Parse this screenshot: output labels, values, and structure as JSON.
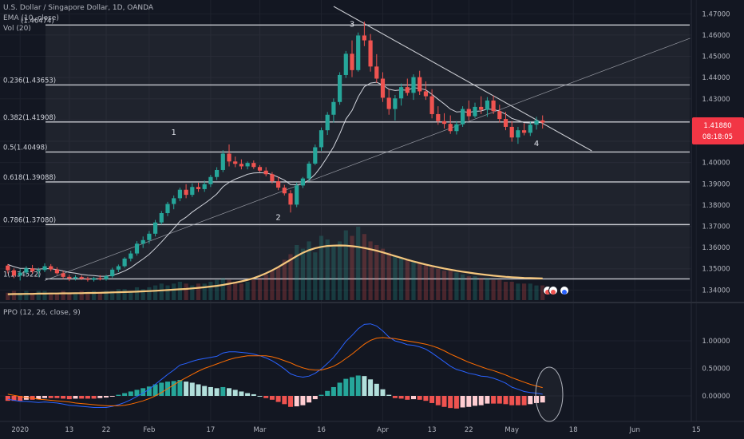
{
  "legend": {
    "title": "U.S. Dollar / Singapore Dollar, 1D, OANDA",
    "ema": "EMA (10, close)",
    "vol": "Vol (20)",
    "ppo": "PPO (12, 26, close, 9)"
  },
  "price_badge": {
    "price": "1.41880",
    "countdown": "08:18:05"
  },
  "fib_levels": [
    {
      "label": "",
      "price": 1.46474,
      "pct": ""
    },
    {
      "label": "0.236(1.43653)",
      "price": 1.43653
    },
    {
      "label": "0.382(1.41908)",
      "price": 1.41908
    },
    {
      "label": "0.5(1.40498)",
      "price": 1.40498
    },
    {
      "label": "0.618(1.39088)",
      "price": 1.39088
    },
    {
      "label": "0.786(1.37080)",
      "price": 1.3708
    },
    {
      "label": "1(1.34522)",
      "price": 1.34522
    }
  ],
  "fib_top_label": "(1.46474)",
  "wave_labels": [
    {
      "text": "1",
      "date_index": 27,
      "price": 1.4145
    },
    {
      "text": "2",
      "date_index": 44,
      "price": 1.3745
    },
    {
      "text": "3",
      "date_index": 56,
      "price": 1.4655
    },
    {
      "text": "4",
      "date_index": 86,
      "price": 1.4092
    }
  ],
  "colors": {
    "up": "#26a69a",
    "down": "#ef5350",
    "ema": "#d1d4dc",
    "vol_ma": "#f5c77e",
    "ppo": "#2962ff",
    "signal": "#ff6d00",
    "hist_up": "#26a69a",
    "hist_down": "#ef5350",
    "badge": "#f23645"
  },
  "chart_data": [
    {
      "type": "candlestick",
      "title": "U.S. Dollar / Singapore Dollar, 1D, OANDA",
      "x_axis": {
        "ticks": [
          "2020",
          "13",
          "22",
          "Feb",
          "17",
          "Mar",
          "16",
          "Apr",
          "13",
          "22",
          "May",
          "18",
          "Jun",
          "15"
        ],
        "tick_index": [
          2,
          10,
          16,
          23,
          33,
          41,
          51,
          61,
          69,
          75,
          82,
          92,
          102,
          112
        ]
      },
      "y_axis": {
        "ticks": [
          "1.47000",
          "1.46000",
          "1.45000",
          "1.44000",
          "1.43000",
          "1.42000",
          "1.41000",
          "1.40000",
          "1.39000",
          "1.38000",
          "1.37000",
          "1.36000",
          "1.35000",
          "1.34000"
        ],
        "range": [
          1.3345,
          1.4735
        ]
      },
      "ohlc": [
        [
          1.3515,
          1.3522,
          1.3478,
          1.3493
        ],
        [
          1.3493,
          1.3502,
          1.3456,
          1.3468
        ],
        [
          1.3468,
          1.3498,
          1.3445,
          1.3482
        ],
        [
          1.3482,
          1.3512,
          1.347,
          1.3502
        ],
        [
          1.3502,
          1.3518,
          1.3478,
          1.3488
        ],
        [
          1.3488,
          1.3505,
          1.3462,
          1.3494
        ],
        [
          1.3494,
          1.3526,
          1.3484,
          1.3512
        ],
        [
          1.3512,
          1.3522,
          1.3488,
          1.3497
        ],
        [
          1.3497,
          1.3507,
          1.3471,
          1.3479
        ],
        [
          1.3479,
          1.349,
          1.3452,
          1.3462
        ],
        [
          1.3462,
          1.3472,
          1.3442,
          1.3455
        ],
        [
          1.3455,
          1.347,
          1.3445,
          1.3461
        ],
        [
          1.3461,
          1.347,
          1.3447,
          1.3453
        ],
        [
          1.3453,
          1.3462,
          1.344,
          1.3448
        ],
        [
          1.3448,
          1.3462,
          1.344,
          1.3456
        ],
        [
          1.3456,
          1.347,
          1.3445,
          1.3451
        ],
        [
          1.3451,
          1.3472,
          1.3444,
          1.3465
        ],
        [
          1.3465,
          1.3505,
          1.3458,
          1.3496
        ],
        [
          1.3496,
          1.352,
          1.3484,
          1.3512
        ],
        [
          1.3512,
          1.3555,
          1.3505,
          1.3548
        ],
        [
          1.3548,
          1.3585,
          1.3535,
          1.3572
        ],
        [
          1.3572,
          1.363,
          1.3562,
          1.3618
        ],
        [
          1.3618,
          1.3652,
          1.3598,
          1.3635
        ],
        [
          1.3635,
          1.3678,
          1.3618,
          1.3665
        ],
        [
          1.3665,
          1.373,
          1.3652,
          1.3718
        ],
        [
          1.3718,
          1.3772,
          1.3708,
          1.3762
        ],
        [
          1.3762,
          1.3815,
          1.3748,
          1.3805
        ],
        [
          1.3805,
          1.3845,
          1.378,
          1.3832
        ],
        [
          1.3832,
          1.3882,
          1.3818,
          1.3872
        ],
        [
          1.3872,
          1.3898,
          1.3832,
          1.3848
        ],
        [
          1.3848,
          1.3902,
          1.3838,
          1.3885
        ],
        [
          1.3885,
          1.3905,
          1.3862,
          1.3875
        ],
        [
          1.3875,
          1.3915,
          1.3862,
          1.3898
        ],
        [
          1.3898,
          1.3942,
          1.3885,
          1.3932
        ],
        [
          1.3932,
          1.3978,
          1.3918,
          1.3965
        ],
        [
          1.3965,
          1.4058,
          1.3955,
          1.4042
        ],
        [
          1.4042,
          1.4085,
          1.3982,
          1.4005
        ],
        [
          1.4005,
          1.4028,
          1.3978,
          1.3994
        ],
        [
          1.3994,
          1.4015,
          1.3968,
          1.3982
        ],
        [
          1.3982,
          1.4005,
          1.3968,
          1.3998
        ],
        [
          1.3998,
          1.401,
          1.397,
          1.3979
        ],
        [
          1.3979,
          1.3988,
          1.3955,
          1.3962
        ],
        [
          1.3962,
          1.3978,
          1.3935,
          1.3945
        ],
        [
          1.3945,
          1.3955,
          1.3902,
          1.3912
        ],
        [
          1.3912,
          1.3932,
          1.387,
          1.3882
        ],
        [
          1.3882,
          1.3895,
          1.3845,
          1.3855
        ],
        [
          1.3855,
          1.387,
          1.3765,
          1.3802
        ],
        [
          1.3802,
          1.3905,
          1.379,
          1.3892
        ],
        [
          1.3892,
          1.3932,
          1.388,
          1.3925
        ],
        [
          1.3925,
          1.4005,
          1.391,
          1.3995
        ],
        [
          1.3995,
          1.4085,
          1.3988,
          1.4072
        ],
        [
          1.4072,
          1.4165,
          1.4055,
          1.4152
        ],
        [
          1.4152,
          1.4238,
          1.413,
          1.4225
        ],
        [
          1.4225,
          1.4302,
          1.4188,
          1.4285
        ],
        [
          1.4285,
          1.4425,
          1.4272,
          1.4412
        ],
        [
          1.4412,
          1.4525,
          1.4398,
          1.4512
        ],
        [
          1.4512,
          1.4575,
          1.4402,
          1.4435
        ],
        [
          1.4435,
          1.4612,
          1.4428,
          1.4598
        ],
        [
          1.4598,
          1.4664,
          1.4548,
          1.4575
        ],
        [
          1.4575,
          1.4605,
          1.4428,
          1.4452
        ],
        [
          1.4452,
          1.451,
          1.4375,
          1.4395
        ],
        [
          1.4395,
          1.4425,
          1.4285,
          1.4305
        ],
        [
          1.4305,
          1.4345,
          1.4225,
          1.4252
        ],
        [
          1.4252,
          1.4318,
          1.4198,
          1.4302
        ],
        [
          1.4302,
          1.4372,
          1.4268,
          1.4355
        ],
        [
          1.4355,
          1.4395,
          1.4315,
          1.4328
        ],
        [
          1.4328,
          1.4415,
          1.4295,
          1.4402
        ],
        [
          1.4402,
          1.4432,
          1.4318,
          1.4335
        ],
        [
          1.4335,
          1.4382,
          1.4295,
          1.4312
        ],
        [
          1.4312,
          1.4345,
          1.4208,
          1.4228
        ],
        [
          1.4228,
          1.4265,
          1.4178,
          1.4195
        ],
        [
          1.4195,
          1.4232,
          1.416,
          1.4182
        ],
        [
          1.4182,
          1.4222,
          1.4135,
          1.4148
        ],
        [
          1.4148,
          1.4195,
          1.4132,
          1.418
        ],
        [
          1.418,
          1.4265,
          1.4168,
          1.4252
        ],
        [
          1.4252,
          1.4292,
          1.4198,
          1.4218
        ],
        [
          1.4218,
          1.4282,
          1.421,
          1.4262
        ],
        [
          1.4262,
          1.4312,
          1.4228,
          1.4248
        ],
        [
          1.4248,
          1.4308,
          1.4215,
          1.4292
        ],
        [
          1.4292,
          1.4315,
          1.4228,
          1.4242
        ],
        [
          1.4242,
          1.4272,
          1.4188,
          1.4205
        ],
        [
          1.4205,
          1.4238,
          1.4152,
          1.4168
        ],
        [
          1.4168,
          1.4195,
          1.4098,
          1.4118
        ],
        [
          1.4118,
          1.4168,
          1.4088,
          1.4152
        ],
        [
          1.4152,
          1.4185,
          1.4128,
          1.414
        ],
        [
          1.414,
          1.4192,
          1.4125,
          1.4178
        ],
        [
          1.4178,
          1.4215,
          1.4155,
          1.4198
        ],
        [
          1.4198,
          1.4222,
          1.416,
          1.4188
        ]
      ],
      "ema10": [
        1.352,
        1.351,
        1.3502,
        1.3502,
        1.35,
        1.3498,
        1.3501,
        1.35,
        1.3496,
        1.349,
        1.3483,
        1.3479,
        1.3474,
        1.347,
        1.3468,
        1.3465,
        1.3465,
        1.347,
        1.3478,
        1.349,
        1.3505,
        1.3526,
        1.3546,
        1.3568,
        1.3596,
        1.3626,
        1.3658,
        1.369,
        1.3724,
        1.3743,
        1.3767,
        1.3787,
        1.3807,
        1.3828,
        1.3852,
        1.3886,
        1.3907,
        1.3922,
        1.3933,
        1.3945,
        1.3951,
        1.3952,
        1.3951,
        1.3944,
        1.3931,
        1.3917,
        1.3896,
        1.3895,
        1.3901,
        1.3918,
        1.3945,
        1.3983,
        1.4027,
        1.4074,
        1.4135,
        1.4204,
        1.4245,
        1.4309,
        1.4357,
        1.4374,
        1.4378,
        1.4365,
        1.4345,
        1.4339,
        1.4342,
        1.434,
        1.4352,
        1.4349,
        1.4342,
        1.4321,
        1.4298,
        1.4276,
        1.4252,
        1.4238,
        1.424,
        1.4236,
        1.4241,
        1.4243,
        1.4252,
        1.425,
        1.4242,
        1.4228,
        1.4208,
        1.4198,
        1.4188,
        1.4186,
        1.4188,
        1.4188
      ],
      "volume": [
        4,
        5,
        4,
        5,
        4,
        5,
        5,
        4,
        4,
        5,
        4,
        4,
        5,
        4,
        5,
        4,
        5,
        5,
        6,
        6,
        5,
        7,
        6,
        7,
        8,
        9,
        8,
        9,
        10,
        9,
        8,
        9,
        9,
        10,
        11,
        12,
        11,
        10,
        9,
        10,
        11,
        12,
        14,
        16,
        18,
        22,
        25,
        30,
        28,
        32,
        26,
        35,
        33,
        30,
        32,
        38,
        35,
        40,
        36,
        32,
        30,
        28,
        26,
        24,
        23,
        22,
        21,
        20,
        19,
        18,
        17,
        16,
        16,
        15,
        14,
        13,
        13,
        12,
        12,
        11,
        11,
        10,
        10,
        9,
        9,
        9,
        8,
        8
      ],
      "volume_ma": [
        3.2,
        3.3,
        3.3,
        3.4,
        3.4,
        3.5,
        3.5,
        3.6,
        3.6,
        3.7,
        3.7,
        3.8,
        3.8,
        3.9,
        3.9,
        4.0,
        4.1,
        4.2,
        4.3,
        4.4,
        4.5,
        4.6,
        4.8,
        4.9,
        5.1,
        5.3,
        5.5,
        5.7,
        5.9,
        6.1,
        6.4,
        6.7,
        7.0,
        7.4,
        7.8,
        8.3,
        8.9,
        9.5,
        10.2,
        11.0,
        12.0,
        13.2,
        14.6,
        16.2,
        18.0,
        20.0,
        22.0,
        24.0,
        25.8,
        27.2,
        28.3,
        29.0,
        29.5,
        29.7,
        29.8,
        29.7,
        29.4,
        29.0,
        28.4,
        27.7,
        26.9,
        26.0,
        25.0,
        24.0,
        23.0,
        22.0,
        21.1,
        20.2,
        19.4,
        18.6,
        17.9,
        17.2,
        16.6,
        16.0,
        15.5,
        15.0,
        14.5,
        14.1,
        13.7,
        13.3,
        13.0,
        12.7,
        12.5,
        12.3,
        12.1,
        12.0,
        11.9,
        11.8
      ]
    },
    {
      "type": "line",
      "title": "PPO (12, 26, close, 9)",
      "y_axis": {
        "ticks": [
          "1.00000",
          "0.50000",
          "0.00000"
        ],
        "range": [
          -0.45,
          1.32
        ]
      },
      "series": [
        {
          "name": "PPO",
          "values": [
            -0.06,
            -0.08,
            -0.1,
            -0.1,
            -0.11,
            -0.12,
            -0.11,
            -0.12,
            -0.13,
            -0.15,
            -0.17,
            -0.18,
            -0.19,
            -0.2,
            -0.21,
            -0.21,
            -0.21,
            -0.19,
            -0.16,
            -0.12,
            -0.07,
            -0.01,
            0.05,
            0.12,
            0.21,
            0.3,
            0.39,
            0.47,
            0.56,
            0.59,
            0.63,
            0.66,
            0.68,
            0.7,
            0.72,
            0.78,
            0.8,
            0.8,
            0.79,
            0.78,
            0.76,
            0.73,
            0.69,
            0.64,
            0.57,
            0.49,
            0.4,
            0.36,
            0.34,
            0.36,
            0.41,
            0.49,
            0.59,
            0.7,
            0.84,
            0.99,
            1.1,
            1.22,
            1.3,
            1.31,
            1.27,
            1.18,
            1.07,
            1.0,
            0.97,
            0.93,
            0.92,
            0.89,
            0.85,
            0.78,
            0.7,
            0.62,
            0.54,
            0.48,
            0.45,
            0.41,
            0.39,
            0.36,
            0.35,
            0.32,
            0.28,
            0.23,
            0.16,
            0.12,
            0.08,
            0.06,
            0.05,
            0.03
          ]
        },
        {
          "name": "Signal",
          "values": [
            0.03,
            0.01,
            -0.01,
            -0.03,
            -0.04,
            -0.06,
            -0.07,
            -0.08,
            -0.09,
            -0.1,
            -0.11,
            -0.13,
            -0.14,
            -0.15,
            -0.16,
            -0.17,
            -0.18,
            -0.18,
            -0.18,
            -0.17,
            -0.15,
            -0.12,
            -0.09,
            -0.05,
            0.0,
            0.06,
            0.13,
            0.2,
            0.27,
            0.33,
            0.39,
            0.45,
            0.5,
            0.54,
            0.58,
            0.62,
            0.66,
            0.69,
            0.71,
            0.73,
            0.73,
            0.73,
            0.73,
            0.71,
            0.68,
            0.64,
            0.6,
            0.55,
            0.51,
            0.48,
            0.47,
            0.47,
            0.5,
            0.54,
            0.6,
            0.68,
            0.76,
            0.85,
            0.94,
            1.01,
            1.05,
            1.06,
            1.05,
            1.04,
            1.02,
            1.0,
            0.98,
            0.96,
            0.94,
            0.91,
            0.87,
            0.82,
            0.76,
            0.71,
            0.66,
            0.61,
            0.57,
            0.53,
            0.49,
            0.46,
            0.42,
            0.38,
            0.33,
            0.29,
            0.25,
            0.21,
            0.18,
            0.15
          ]
        }
      ],
      "histogram": [
        -0.09,
        -0.09,
        -0.09,
        -0.07,
        -0.07,
        -0.06,
        -0.04,
        -0.04,
        -0.04,
        -0.05,
        -0.06,
        -0.05,
        -0.05,
        -0.05,
        -0.05,
        -0.04,
        -0.03,
        -0.01,
        0.02,
        0.05,
        0.08,
        0.11,
        0.14,
        0.17,
        0.21,
        0.24,
        0.26,
        0.27,
        0.29,
        0.26,
        0.24,
        0.21,
        0.18,
        0.16,
        0.14,
        0.16,
        0.14,
        0.11,
        0.08,
        0.05,
        0.03,
        0.0,
        -0.04,
        -0.07,
        -0.11,
        -0.15,
        -0.2,
        -0.19,
        -0.17,
        -0.12,
        -0.06,
        0.02,
        0.09,
        0.16,
        0.24,
        0.31,
        0.34,
        0.37,
        0.36,
        0.3,
        0.22,
        0.12,
        0.02,
        -0.04,
        -0.05,
        -0.07,
        -0.06,
        -0.07,
        -0.09,
        -0.13,
        -0.17,
        -0.2,
        -0.22,
        -0.23,
        -0.21,
        -0.2,
        -0.18,
        -0.17,
        -0.14,
        -0.14,
        -0.14,
        -0.15,
        -0.17,
        -0.17,
        -0.17,
        -0.15,
        -0.13,
        -0.12
      ]
    }
  ]
}
